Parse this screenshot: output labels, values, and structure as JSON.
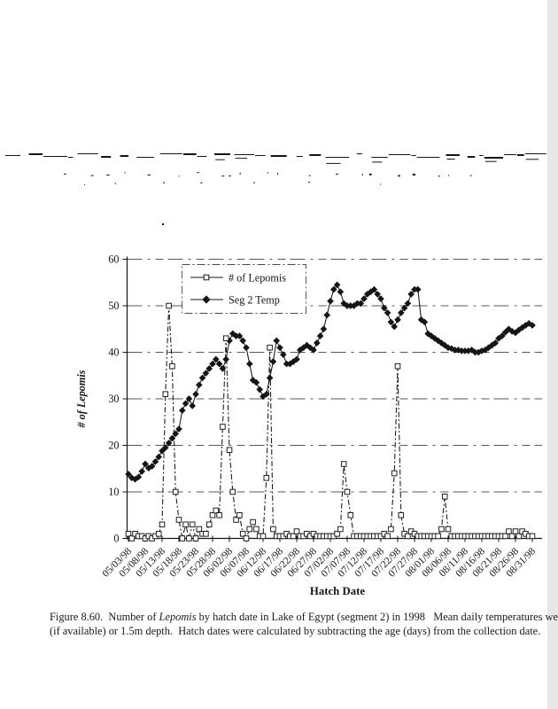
{
  "page": {
    "background": "#ffffff",
    "ink_color": "#151515"
  },
  "figure_caption": {
    "line1_prefix": "Figure 8.60.  Number of ",
    "line1_italic": "Lepomis",
    "line1_suffix": " by hatch date in Lake of Egypt (segment 2) in 1998   Mean daily temperatures we",
    "line2": "(if available) or 1.5m depth.  Hatch dates were calculated by subtracting the age (days) from the collection date."
  },
  "chart_data": {
    "type": "line",
    "title": "",
    "xlabel": "Hatch Date",
    "ylabel": "# of Lepomis",
    "ylim": [
      0,
      60
    ],
    "yticks": [
      0,
      10,
      20,
      30,
      40,
      50,
      60
    ],
    "grid": "horizontal-dash-dot",
    "legend_position": "upper-left-inside",
    "x_start": "05/03/98",
    "x_step_days": 1,
    "xtick_labels": [
      "05/03/98",
      "05/08/98",
      "05/13/98",
      "05/18/98",
      "05/23/98",
      "05/28/98",
      "06/02/98",
      "06/07/98",
      "06/12/98",
      "06/17/98",
      "06/22/98",
      "06/27/98",
      "07/02/98",
      "07/07/98",
      "07/12/98",
      "07/17/98",
      "07/22/98",
      "07/27/98",
      "08/01/98",
      "08/06/98",
      "08/11/98",
      "08/16/98",
      "08/21/98",
      "08/26/98",
      "08/31/98"
    ],
    "series": [
      {
        "name": "# of Lepomis",
        "marker": "open-square",
        "color": "#151515",
        "values": [
          1,
          0,
          1,
          0.5,
          0.5,
          0,
          0.5,
          0,
          0.5,
          1,
          3,
          31,
          50,
          37,
          10,
          4,
          0,
          3,
          0,
          3,
          0,
          2,
          1,
          1,
          3,
          5,
          6,
          5,
          24,
          43,
          19,
          10,
          4,
          5,
          1,
          0,
          2,
          3.5,
          2,
          0.5,
          0.5,
          13,
          41,
          2,
          0.5,
          0.5,
          0.5,
          1,
          0.5,
          0.5,
          1.5,
          0.5,
          0.5,
          1,
          0.5,
          1,
          0.5,
          0.5,
          0.5,
          0.5,
          0.5,
          0.5,
          1,
          2,
          16,
          10,
          5,
          0.5,
          0.5,
          0.5,
          0.5,
          0.5,
          0.5,
          0.5,
          0.5,
          0.5,
          1,
          0.5,
          2,
          14,
          37,
          5,
          1,
          0.5,
          1.5,
          1,
          0.5,
          0.5,
          0.5,
          0.5,
          0.5,
          0.5,
          0.5,
          2,
          9,
          2,
          0.5,
          0.5,
          0.5,
          0.5,
          0.5,
          0.5,
          0.5,
          0.5,
          0.5,
          0.5,
          0.5,
          0.5,
          0.5,
          0.5,
          0.5,
          0.5,
          0.5,
          1.5,
          0.5,
          1.5,
          0.5,
          1.5,
          1,
          0.5,
          0.5
        ]
      },
      {
        "name": "Seg 2 Temp",
        "marker": "filled-diamond",
        "color": "#151515",
        "values": [
          13.8,
          13,
          12.7,
          13.2,
          14.4,
          16,
          15.1,
          15.5,
          16.5,
          17.5,
          18.8,
          19.5,
          20.5,
          21.5,
          22.5,
          23.5,
          27.5,
          29,
          30,
          28.5,
          31,
          33,
          34.5,
          35.5,
          36.5,
          37.5,
          38.5,
          37.5,
          36.5,
          38.5,
          42.5,
          44,
          43.5,
          43.5,
          42.5,
          41,
          37.5,
          34,
          33.5,
          32,
          30.5,
          31,
          34.5,
          38,
          42.5,
          41,
          39.5,
          37.5,
          37.5,
          38,
          38.5,
          40.5,
          41,
          41.5,
          41,
          40.5,
          42,
          43.5,
          45,
          48,
          51,
          53.5,
          54.5,
          53,
          50.5,
          50,
          50,
          50,
          50.5,
          50.5,
          51.5,
          52.5,
          53,
          53.5,
          52.5,
          51.5,
          49.5,
          48.5,
          46.5,
          45.5,
          47,
          48.5,
          49.5,
          50.5,
          52.5,
          53.5,
          53.5,
          47,
          46.5,
          44,
          43.5,
          43,
          42.5,
          42,
          41.5,
          41,
          40.8,
          40.5,
          40.5,
          40.3,
          40.3,
          40.3,
          40.5,
          40,
          40,
          40.3,
          40.5,
          41,
          41.5,
          42,
          43,
          43.5,
          44.3,
          45,
          44.5,
          44.2,
          44.8,
          45.3,
          45.8,
          46.2,
          45.8
        ]
      }
    ]
  }
}
